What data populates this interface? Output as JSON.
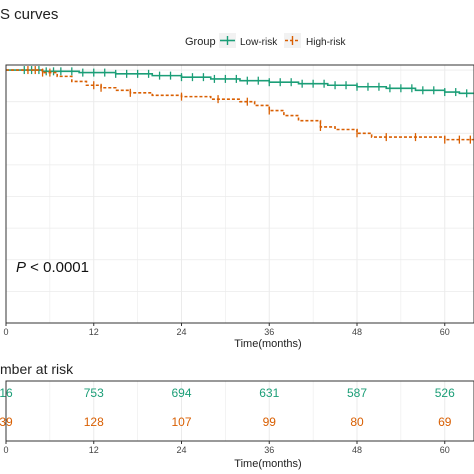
{
  "title": "S curves",
  "legend": {
    "title": "Group",
    "position": "top-center",
    "items": [
      {
        "label": "Low-risk",
        "color": "#1b9e77",
        "line": "solid"
      },
      {
        "label": "High-risk",
        "color": "#d95f02",
        "line": "dashed"
      }
    ]
  },
  "annotation": {
    "p_symbol": "P",
    "p_rest": " < 0.0001"
  },
  "risk_table": {
    "title": "mber at risk",
    "rows": [
      {
        "group": "Low-risk",
        "color": "#1b9e77",
        "values": [
          "16",
          "753",
          "694",
          "631",
          "587",
          "526"
        ]
      },
      {
        "group": "High-risk",
        "color": "#d95f02",
        "values": [
          "39",
          "128",
          "107",
          "99",
          "80",
          "69"
        ]
      }
    ],
    "xlabel": "Time(months)",
    "ticks": [
      "0",
      "12",
      "24",
      "36",
      "48",
      "60"
    ]
  },
  "chart_data": {
    "type": "line",
    "chart_kind": "Kaplan-Meier survival curves",
    "xlabel": "Time(months)",
    "ylabel": "",
    "xlim": [
      0,
      64
    ],
    "ylim": [
      0,
      1.02
    ],
    "x_ticks": [
      0,
      12,
      24,
      36,
      48,
      60
    ],
    "x_tick_labels": [
      "0",
      "12",
      "24",
      "36",
      "48",
      "60"
    ],
    "grid": true,
    "series": [
      {
        "name": "Low-risk",
        "color": "#1b9e77",
        "line_style": "solid",
        "x": [
          0,
          5,
          10,
          15,
          20,
          24,
          28,
          32,
          36,
          40,
          44,
          48,
          52,
          56,
          60,
          62,
          64
        ],
        "y": [
          1.0,
          0.995,
          0.99,
          0.985,
          0.978,
          0.972,
          0.965,
          0.958,
          0.952,
          0.946,
          0.94,
          0.934,
          0.928,
          0.92,
          0.913,
          0.908,
          0.905
        ],
        "censor_x": [
          2.5,
          3.5,
          4.5,
          5.5,
          6.5,
          7.5,
          9,
          10.5,
          12,
          13.5,
          15,
          16.5,
          18,
          19.5,
          21,
          22.5,
          24,
          25.5,
          27,
          28.5,
          30,
          31.5,
          33,
          34.5,
          36,
          37.5,
          39,
          40.5,
          42,
          43.5,
          45,
          46.5,
          48,
          49.5,
          51,
          52.5,
          54,
          55.5,
          57,
          58.5,
          60,
          61.5,
          63
        ]
      },
      {
        "name": "High-risk",
        "color": "#d95f02",
        "line_style": "dashed",
        "x": [
          0,
          5,
          7,
          9,
          11,
          13,
          15,
          17,
          20,
          24,
          28,
          32,
          34,
          36,
          38,
          40,
          43,
          45,
          48,
          50,
          55,
          58,
          60,
          64
        ],
        "y": [
          1.0,
          0.99,
          0.975,
          0.955,
          0.94,
          0.93,
          0.92,
          0.91,
          0.9,
          0.895,
          0.885,
          0.875,
          0.86,
          0.84,
          0.82,
          0.8,
          0.775,
          0.765,
          0.75,
          0.735,
          0.735,
          0.735,
          0.725,
          0.725
        ],
        "censor_x": [
          3,
          4,
          5,
          6,
          12,
          13,
          17,
          24,
          29,
          33,
          36,
          43,
          48,
          52,
          56,
          60,
          62,
          63.5
        ]
      }
    ]
  }
}
